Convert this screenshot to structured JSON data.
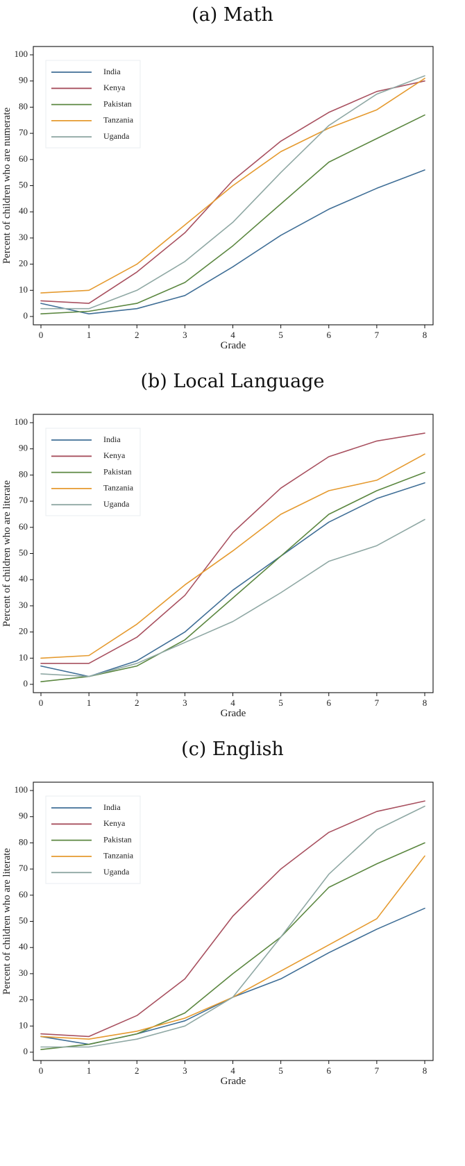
{
  "colors": {
    "India": "#3f6e96",
    "Kenya": "#a8505f",
    "Pakistan": "#5b8740",
    "Tanzania": "#e59a2f",
    "Uganda": "#8fa8a4"
  },
  "chart_data": [
    {
      "type": "line",
      "title": "(a) Math",
      "xlabel": "Grade",
      "ylabel": "Percent of children who are numerate",
      "xlim": [
        0,
        8
      ],
      "ylim": [
        0,
        100
      ],
      "x": [
        0,
        1,
        2,
        3,
        4,
        5,
        6,
        7,
        8
      ],
      "xticks": [
        "0",
        "1",
        "2",
        "3",
        "4",
        "5",
        "6",
        "7",
        "8"
      ],
      "yticks": [
        "0",
        "10",
        "20",
        "30",
        "40",
        "50",
        "60",
        "70",
        "80",
        "90",
        "100"
      ],
      "legend_position": "top-left",
      "grid": false,
      "series": [
        {
          "name": "India",
          "values": [
            5,
            1,
            3,
            8,
            19,
            31,
            41,
            49,
            56
          ]
        },
        {
          "name": "Kenya",
          "values": [
            6,
            5,
            17,
            32,
            52,
            67,
            78,
            86,
            90
          ]
        },
        {
          "name": "Pakistan",
          "values": [
            1,
            2,
            5,
            13,
            27,
            43,
            59,
            68,
            77
          ]
        },
        {
          "name": "Tanzania",
          "values": [
            9,
            10,
            20,
            35,
            50,
            63,
            72,
            79,
            91
          ]
        },
        {
          "name": "Uganda",
          "values": [
            3,
            3,
            10,
            21,
            36,
            55,
            73,
            85,
            92
          ]
        }
      ]
    },
    {
      "type": "line",
      "title": "(b) Local Language",
      "xlabel": "Grade",
      "ylabel": "Percent of children who are literate",
      "xlim": [
        0,
        8
      ],
      "ylim": [
        0,
        100
      ],
      "x": [
        0,
        1,
        2,
        3,
        4,
        5,
        6,
        7,
        8
      ],
      "xticks": [
        "0",
        "1",
        "2",
        "3",
        "4",
        "5",
        "6",
        "7",
        "8"
      ],
      "yticks": [
        "0",
        "10",
        "20",
        "30",
        "40",
        "50",
        "60",
        "70",
        "80",
        "90",
        "100"
      ],
      "legend_position": "top-left",
      "grid": false,
      "series": [
        {
          "name": "India",
          "values": [
            7,
            3,
            9,
            20,
            36,
            49,
            62,
            71,
            77
          ]
        },
        {
          "name": "Kenya",
          "values": [
            8,
            8,
            18,
            34,
            58,
            75,
            87,
            93,
            96
          ]
        },
        {
          "name": "Pakistan",
          "values": [
            1,
            3,
            7,
            17,
            33,
            49,
            65,
            74,
            81
          ]
        },
        {
          "name": "Tanzania",
          "values": [
            10,
            11,
            23,
            38,
            51,
            65,
            74,
            78,
            88
          ]
        },
        {
          "name": "Uganda",
          "values": [
            4,
            3,
            8,
            16,
            24,
            35,
            47,
            53,
            63
          ]
        }
      ]
    },
    {
      "type": "line",
      "title": "(c) English",
      "xlabel": "Grade",
      "ylabel": "Percent of children who are literate",
      "xlim": [
        0,
        8
      ],
      "ylim": [
        0,
        100
      ],
      "x": [
        0,
        1,
        2,
        3,
        4,
        5,
        6,
        7,
        8
      ],
      "xticks": [
        "0",
        "1",
        "2",
        "3",
        "4",
        "5",
        "6",
        "7",
        "8"
      ],
      "yticks": [
        "0",
        "10",
        "20",
        "30",
        "40",
        "50",
        "60",
        "70",
        "80",
        "90",
        "100"
      ],
      "legend_position": "top-left",
      "grid": false,
      "series": [
        {
          "name": "India",
          "values": [
            6,
            3,
            7,
            12,
            21,
            28,
            38,
            47,
            55
          ]
        },
        {
          "name": "Kenya",
          "values": [
            7,
            6,
            14,
            28,
            52,
            70,
            84,
            92,
            96
          ]
        },
        {
          "name": "Pakistan",
          "values": [
            1,
            3,
            7,
            15,
            30,
            44,
            63,
            72,
            80
          ]
        },
        {
          "name": "Tanzania",
          "values": [
            6,
            5,
            8,
            13,
            21,
            31,
            41,
            51,
            75
          ]
        },
        {
          "name": "Uganda",
          "values": [
            2,
            2,
            5,
            10,
            21,
            44,
            68,
            85,
            94
          ]
        }
      ]
    }
  ]
}
